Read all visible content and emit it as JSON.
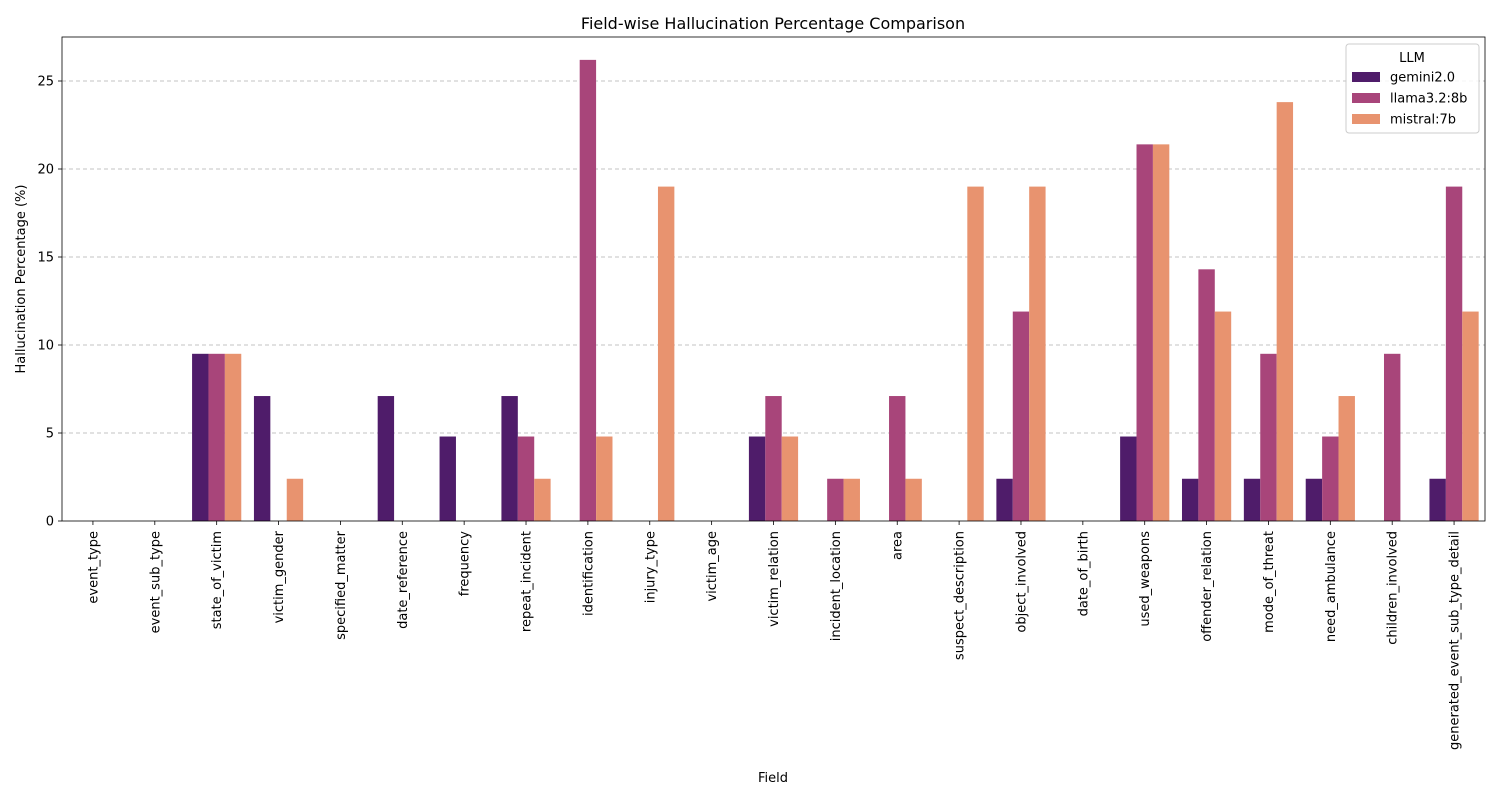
{
  "chart_data": {
    "type": "bar",
    "title": "Field-wise Hallucination Percentage Comparison",
    "xlabel": "Field",
    "ylabel": "Hallucination Percentage (%)",
    "ylim": [
      0,
      27.5
    ],
    "yticks": [
      0,
      5,
      10,
      15,
      20,
      25
    ],
    "grid": "y-dashed",
    "legend": {
      "title": "LLM",
      "placement": "top-right"
    },
    "categories": [
      "event_type",
      "event_sub_type",
      "state_of_victim",
      "victim_gender",
      "specified_matter",
      "date_reference",
      "frequency",
      "repeat_incident",
      "identification",
      "injury_type",
      "victim_age",
      "victim_relation",
      "incident_location",
      "area",
      "suspect_description",
      "object_involved",
      "date_of_birth",
      "used_weapons",
      "offender_relation",
      "mode_of_threat",
      "need_ambulance",
      "children_involved",
      "generated_event_sub_type_detail"
    ],
    "series": [
      {
        "name": "gemini2.0",
        "color": "#4f1c6a",
        "values": [
          0,
          0,
          9.5,
          7.1,
          0,
          7.1,
          4.8,
          7.1,
          0,
          0,
          0,
          4.8,
          0,
          0,
          0,
          2.4,
          0,
          4.8,
          2.4,
          2.4,
          2.4,
          0,
          2.4
        ]
      },
      {
        "name": "llama3.2:8b",
        "color": "#a8457a",
        "values": [
          0,
          0,
          9.5,
          0,
          0,
          0,
          0,
          4.8,
          26.2,
          0,
          0,
          7.1,
          2.4,
          7.1,
          0,
          11.9,
          0,
          21.4,
          14.3,
          9.5,
          4.8,
          9.5,
          19.0
        ]
      },
      {
        "name": "mistral:7b",
        "color": "#e8936f",
        "values": [
          0,
          0,
          9.5,
          2.4,
          0,
          0,
          0,
          2.4,
          4.8,
          19.0,
          0,
          4.8,
          2.4,
          2.4,
          19.0,
          19.0,
          0,
          21.4,
          11.9,
          23.8,
          7.1,
          0,
          11.9
        ]
      }
    ]
  }
}
